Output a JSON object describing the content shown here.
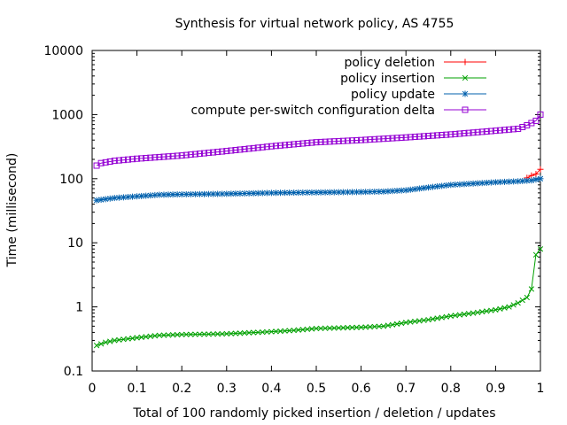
{
  "chart_data": {
    "type": "line",
    "title": "Synthesis for virtual network policy, AS 4755",
    "xlabel": "Total of 100 randomly picked insertion / deletion / updates",
    "ylabel": "Time (millisecond)",
    "xlim": [
      0,
      1
    ],
    "ylim": [
      0.1,
      10000
    ],
    "yscale": "log",
    "legend_position": "top-right",
    "x_ticks": [
      "0",
      "0.1",
      "0.2",
      "0.3",
      "0.4",
      "0.5",
      "0.6",
      "0.7",
      "0.8",
      "0.9",
      "1"
    ],
    "y_ticks": [
      "0.1",
      "1",
      "10",
      "100",
      "1000",
      "10000"
    ],
    "series": [
      {
        "name": "policy deletion",
        "color": "#ff0000",
        "marker": "plus",
        "points": [
          [
            0.97,
            103
          ],
          [
            0.98,
            112
          ],
          [
            0.99,
            118
          ],
          [
            1.0,
            140
          ]
        ]
      },
      {
        "name": "policy insertion",
        "color": "#00a000",
        "marker": "x",
        "knots": [
          [
            0.01,
            0.25
          ],
          [
            0.03,
            0.28
          ],
          [
            0.05,
            0.3
          ],
          [
            0.1,
            0.33
          ],
          [
            0.15,
            0.36
          ],
          [
            0.2,
            0.37
          ],
          [
            0.3,
            0.38
          ],
          [
            0.4,
            0.41
          ],
          [
            0.45,
            0.43
          ],
          [
            0.5,
            0.46
          ],
          [
            0.6,
            0.48
          ],
          [
            0.65,
            0.5
          ],
          [
            0.7,
            0.57
          ],
          [
            0.75,
            0.63
          ],
          [
            0.8,
            0.72
          ],
          [
            0.85,
            0.8
          ],
          [
            0.9,
            0.9
          ],
          [
            0.93,
            1.0
          ],
          [
            0.95,
            1.15
          ],
          [
            0.97,
            1.4
          ],
          [
            0.98,
            1.9
          ],
          [
            0.99,
            6.5
          ],
          [
            1.0,
            8.0
          ]
        ]
      },
      {
        "name": "policy update",
        "color": "#0060ad",
        "marker": "star",
        "knots": [
          [
            0.01,
            46
          ],
          [
            0.05,
            50
          ],
          [
            0.1,
            53
          ],
          [
            0.15,
            56
          ],
          [
            0.2,
            57
          ],
          [
            0.3,
            58
          ],
          [
            0.4,
            60
          ],
          [
            0.5,
            61
          ],
          [
            0.6,
            62
          ],
          [
            0.65,
            63
          ],
          [
            0.7,
            66
          ],
          [
            0.75,
            73
          ],
          [
            0.8,
            80
          ],
          [
            0.9,
            88
          ],
          [
            0.95,
            91
          ],
          [
            0.98,
            94
          ],
          [
            1.0,
            100
          ]
        ]
      },
      {
        "name": "compute per-switch configuration delta",
        "color": "#9400d3",
        "marker": "square",
        "knots": [
          [
            0.01,
            160
          ],
          [
            0.02,
            175
          ],
          [
            0.05,
            190
          ],
          [
            0.1,
            205
          ],
          [
            0.2,
            230
          ],
          [
            0.3,
            270
          ],
          [
            0.4,
            320
          ],
          [
            0.5,
            370
          ],
          [
            0.6,
            400
          ],
          [
            0.7,
            440
          ],
          [
            0.8,
            490
          ],
          [
            0.9,
            560
          ],
          [
            0.95,
            600
          ],
          [
            0.97,
            680
          ],
          [
            0.99,
            800
          ],
          [
            1.0,
            1000
          ]
        ]
      }
    ]
  }
}
